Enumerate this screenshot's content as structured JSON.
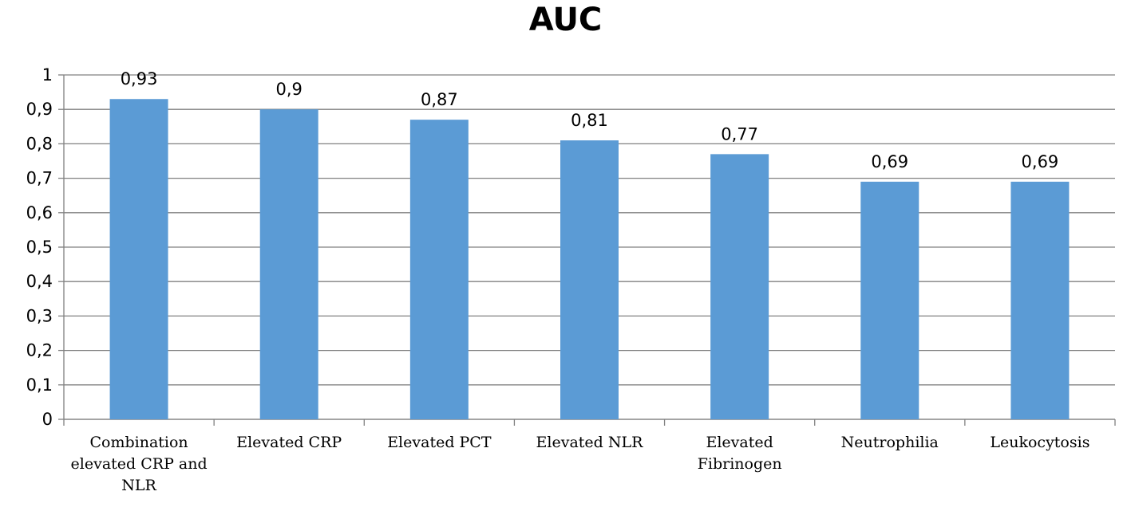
{
  "chart_data": {
    "type": "bar",
    "title": "AUC",
    "xlabel": "",
    "ylabel": "",
    "ylim": [
      0,
      1
    ],
    "yticks": [
      "0",
      "0,1",
      "0,2",
      "0,3",
      "0,4",
      "0,5",
      "0,6",
      "0,7",
      "0,8",
      "0,9",
      "1"
    ],
    "grid": true,
    "categories": [
      [
        "Combination",
        "elevated CRP and",
        "NLR"
      ],
      [
        "Elevated CRP"
      ],
      [
        "Elevated PCT"
      ],
      [
        "Elevated NLR"
      ],
      [
        "Elevated",
        "Fibrinogen"
      ],
      [
        "Neutrophilia"
      ],
      [
        "Leukocytosis"
      ]
    ],
    "values": [
      0.93,
      0.9,
      0.87,
      0.81,
      0.77,
      0.69,
      0.69
    ],
    "data_labels": [
      "0,93",
      "0,9",
      "0,87",
      "0,81",
      "0,77",
      "0,69",
      "0,69"
    ],
    "colors": {
      "bar": "#5B9BD5",
      "grid": "#808080",
      "axis": "#808080"
    }
  }
}
